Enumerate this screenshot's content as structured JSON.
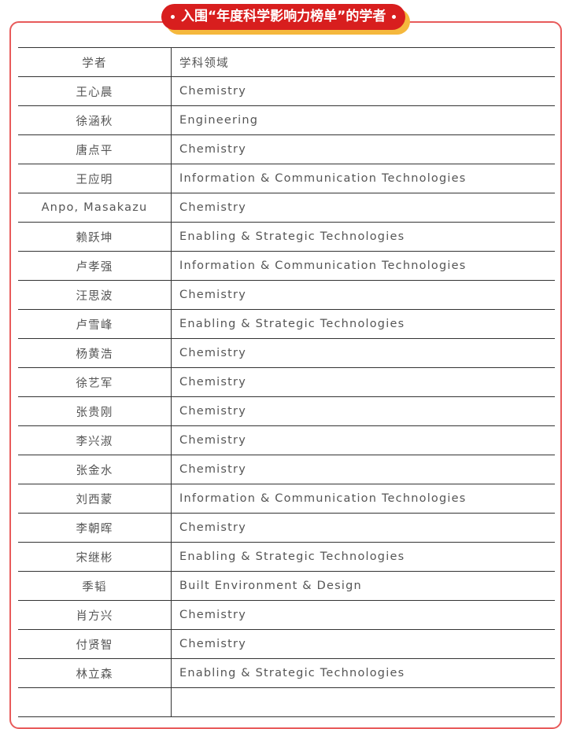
{
  "banner": {
    "title": "入围“年度科学影响力榜单”的学者"
  },
  "table": {
    "headers": [
      "学者",
      "学科领域"
    ],
    "rows": [
      {
        "name": "王心晨",
        "field": "Chemistry"
      },
      {
        "name": "徐涵秋",
        "field": "Engineering"
      },
      {
        "name": "唐点平",
        "field": "Chemistry"
      },
      {
        "name": "王应明",
        "field": "Information & Communication Technologies"
      },
      {
        "name": "Anpo, Masakazu",
        "field": "Chemistry"
      },
      {
        "name": "赖跃坤",
        "field": "Enabling & Strategic Technologies"
      },
      {
        "name": "卢孝强",
        "field": "Information & Communication Technologies"
      },
      {
        "name": "汪思波",
        "field": "Chemistry"
      },
      {
        "name": "卢雪峰",
        "field": "Enabling & Strategic Technologies"
      },
      {
        "name": "杨黄浩",
        "field": "Chemistry"
      },
      {
        "name": "徐艺军",
        "field": "Chemistry"
      },
      {
        "name": "张贵刚",
        "field": "Chemistry"
      },
      {
        "name": "李兴淑",
        "field": "Chemistry"
      },
      {
        "name": "张金水",
        "field": "Chemistry"
      },
      {
        "name": "刘西蒙",
        "field": "Information & Communication Technologies"
      },
      {
        "name": "李朝晖",
        "field": "Chemistry"
      },
      {
        "name": "宋继彬",
        "field": "Enabling & Strategic Technologies"
      },
      {
        "name": "季韬",
        "field": "Built Environment & Design"
      },
      {
        "name": "肖方兴",
        "field": "Chemistry"
      },
      {
        "name": "付贤智",
        "field": "Chemistry"
      },
      {
        "name": "林立森",
        "field": "Enabling & Strategic Technologies"
      }
    ]
  },
  "colors": {
    "accent": "#d81e1e",
    "shadow": "#f5b83d",
    "border": "#e85a5a"
  }
}
